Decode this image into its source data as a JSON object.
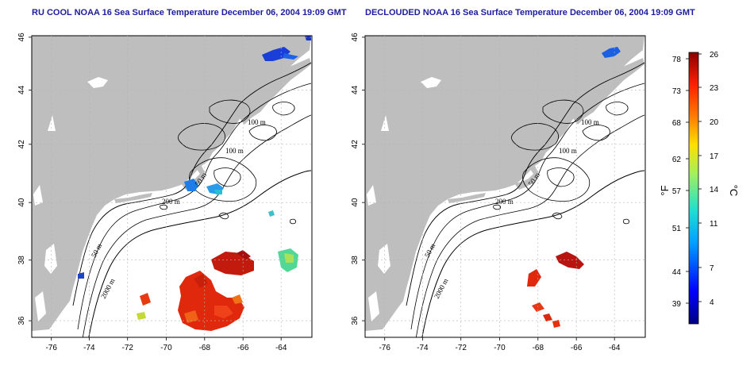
{
  "panels": [
    {
      "title": "RU COOL NOAA 16 Sea Surface Temperature December 06, 2004 19:09 GMT"
    },
    {
      "title": "DECLOUDED NOAA 16 Sea Surface Temperature December 06, 2004 19:09 GMT"
    }
  ],
  "axes": {
    "lon_ticks": [
      "-76",
      "-74",
      "-72",
      "-70",
      "-68",
      "-66",
      "-64"
    ],
    "lat_ticks": [
      "36",
      "38",
      "40",
      "42",
      "44",
      "46"
    ]
  },
  "contour_labels": [
    "100 m",
    "100 m",
    "50 m",
    "200 m",
    "50 m",
    "2000 m"
  ],
  "colorbar": {
    "fahrenheit_ticks": [
      "78",
      "73",
      "68",
      "62",
      "57",
      "51",
      "44",
      "39"
    ],
    "celsius_ticks": [
      "26",
      "23",
      "20",
      "17",
      "14",
      "11",
      "7",
      "4"
    ],
    "unit_f": "°F",
    "unit_c": "°C"
  },
  "colors": {
    "land": "#bebebe",
    "ocean": "#ffffff",
    "title": "#1c1c9c"
  }
}
